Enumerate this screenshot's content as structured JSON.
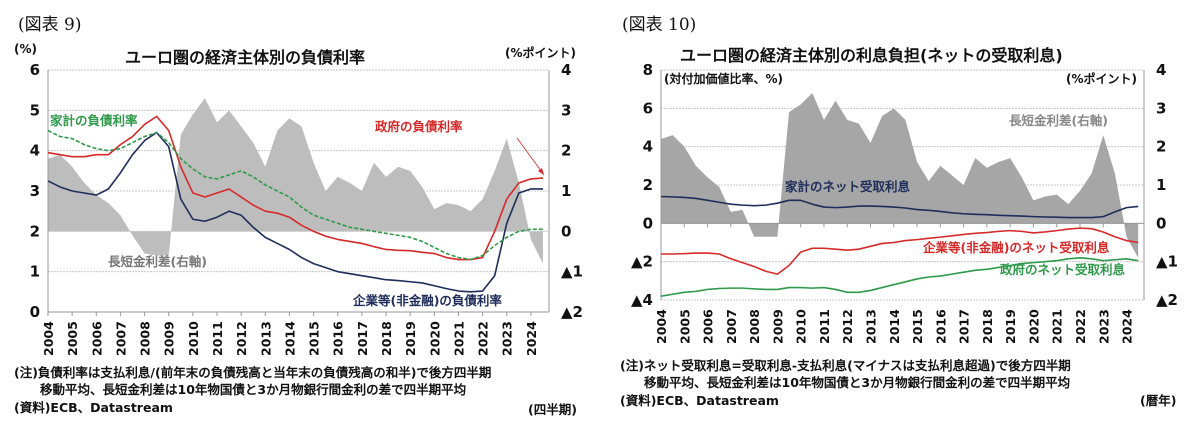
{
  "left": {
    "fig_label": "(図表 9)",
    "title": "ユーロ圏の経済主体別の負債利率",
    "left_unit": "(%)",
    "right_unit": "(%ポイント)",
    "note1": "(注)負債利率は支払利息/(前年末の負債残高と当年末の負債残高の和半)で後方四半期",
    "note2": "移動平均、長短金利差は10年物国債と3か月物銀行間金利の差で四半期平均",
    "source": "(資料)ECB、Datastream",
    "period": "(四半期)"
  },
  "right": {
    "fig_label": "(図表 10)",
    "title": "ユーロ圏の経済主体別の利息負担(ネットの受取利息)",
    "left_unit": "(対付加価値比率、%)",
    "right_unit": "(%ポイント)",
    "note1": "(注)ネット受取利息=受取利息-支払利息(マイナスは支払利息超過)で後方四半期",
    "note2": "移動平均、長短金利差は10年物国債と3か月物銀行間金利の差で四半期平均",
    "source": "(資料)ECB、Datastream",
    "period": "(暦年)"
  },
  "chart_data": [
    {
      "type": "line",
      "title": "ユーロ圏の経済主体別の負債利率",
      "xlabel": "(四半期)",
      "ylabel": "(%)",
      "y2label": "(%ポイント)",
      "categories": [
        "2004",
        "2005",
        "2006",
        "2007",
        "2008",
        "2009",
        "2010",
        "2011",
        "2012",
        "2013",
        "2014",
        "2015",
        "2016",
        "2017",
        "2018",
        "2019",
        "2020",
        "2021",
        "2022",
        "2023",
        "2024"
      ],
      "ylim": [
        0,
        6
      ],
      "y2lim": [
        -2,
        4
      ],
      "yticks": [
        "0",
        "1",
        "2",
        "3",
        "4",
        "5",
        "6"
      ],
      "y2ticks": [
        "▲2",
        "▲1",
        "0",
        "1",
        "2",
        "3",
        "4"
      ],
      "x": [
        2004.0,
        2004.5,
        2005.0,
        2005.5,
        2006.0,
        2006.5,
        2007.0,
        2007.5,
        2008.0,
        2008.5,
        2009.0,
        2009.5,
        2010.0,
        2010.5,
        2011.0,
        2011.5,
        2012.0,
        2012.5,
        2013.0,
        2013.5,
        2014.0,
        2014.5,
        2015.0,
        2015.5,
        2016.0,
        2016.5,
        2017.0,
        2017.5,
        2018.0,
        2018.5,
        2019.0,
        2019.5,
        2020.0,
        2020.5,
        2021.0,
        2021.5,
        2022.0,
        2022.5,
        2023.0,
        2023.5,
        2024.0,
        2024.5
      ],
      "series": [
        {
          "name": "企業等(非金融)の負債利率",
          "axis": "left",
          "color": "#d62a2a",
          "style": "solid",
          "values": [
            3.95,
            3.9,
            3.85,
            3.85,
            3.9,
            3.9,
            4.15,
            4.35,
            4.65,
            4.85,
            4.5,
            3.6,
            2.95,
            2.85,
            2.95,
            3.05,
            2.85,
            2.65,
            2.5,
            2.45,
            2.35,
            2.15,
            2.0,
            1.88,
            1.8,
            1.75,
            1.7,
            1.62,
            1.55,
            1.53,
            1.52,
            1.48,
            1.45,
            1.35,
            1.3,
            1.3,
            1.35,
            2.0,
            2.8,
            3.2,
            3.3,
            3.32
          ]
        },
        {
          "name": "家計の負債利率",
          "axis": "left",
          "color": "#1f2d5a",
          "style": "solid",
          "values": [
            3.25,
            3.1,
            3.0,
            2.95,
            2.9,
            3.05,
            3.45,
            3.9,
            4.25,
            4.45,
            4.1,
            2.8,
            2.3,
            2.25,
            2.35,
            2.5,
            2.4,
            2.1,
            1.85,
            1.7,
            1.55,
            1.35,
            1.2,
            1.1,
            1.0,
            0.95,
            0.9,
            0.85,
            0.8,
            0.78,
            0.75,
            0.72,
            0.65,
            0.58,
            0.52,
            0.5,
            0.52,
            0.9,
            2.2,
            2.95,
            3.05,
            3.05
          ]
        },
        {
          "name": "政府の負債利率",
          "axis": "left",
          "color": "#2e9a4a",
          "style": "dashed",
          "values": [
            4.5,
            4.35,
            4.3,
            4.15,
            4.05,
            4.0,
            4.05,
            4.2,
            4.35,
            4.45,
            4.2,
            3.8,
            3.55,
            3.35,
            3.3,
            3.4,
            3.5,
            3.35,
            3.15,
            3.0,
            2.85,
            2.6,
            2.4,
            2.3,
            2.2,
            2.1,
            2.05,
            2.0,
            1.95,
            1.9,
            1.85,
            1.75,
            1.6,
            1.45,
            1.35,
            1.3,
            1.4,
            1.65,
            1.85,
            2.0,
            2.05,
            2.05
          ]
        },
        {
          "name": "長短金利差(右軸)",
          "axis": "right",
          "color": "#bdbdbd",
          "style": "area",
          "values": [
            1.8,
            1.9,
            1.6,
            1.2,
            0.9,
            0.7,
            0.4,
            -0.1,
            -0.55,
            -0.6,
            -0.6,
            2.4,
            2.9,
            3.3,
            2.7,
            3.0,
            2.6,
            2.2,
            1.6,
            2.5,
            2.8,
            2.6,
            1.7,
            1.0,
            1.35,
            1.2,
            1.0,
            1.7,
            1.35,
            1.6,
            1.5,
            1.1,
            0.55,
            0.7,
            0.65,
            0.5,
            0.8,
            1.5,
            2.3,
            1.2,
            -0.2,
            -0.8
          ]
        }
      ],
      "annotations": [
        "政府の負債利率",
        "企業等(非金融)の負債利率",
        "家計の負債利率",
        "長短金利差(右軸)"
      ]
    },
    {
      "type": "line",
      "title": "ユーロ圏の経済主体別の利息負担(ネットの受取利息)",
      "xlabel": "(暦年)",
      "ylabel": "(対付加価値比率、%)",
      "y2label": "(%ポイント)",
      "categories": [
        "2004",
        "2005",
        "2006",
        "2007",
        "2008",
        "2009",
        "2010",
        "2011",
        "2012",
        "2013",
        "2014",
        "2015",
        "2016",
        "2017",
        "2018",
        "2019",
        "2020",
        "2021",
        "2022",
        "2023",
        "2024"
      ],
      "ylim": [
        -4,
        8
      ],
      "y2lim": [
        -2,
        4
      ],
      "yticks": [
        "▲4",
        "▲2",
        "0",
        "2",
        "4",
        "6",
        "8"
      ],
      "y2ticks": [
        "▲2",
        "▲1",
        "0",
        "1",
        "2",
        "3",
        "4"
      ],
      "x": [
        2004.0,
        2004.5,
        2005.0,
        2005.5,
        2006.0,
        2006.5,
        2007.0,
        2007.5,
        2008.0,
        2008.5,
        2009.0,
        2009.5,
        2010.0,
        2010.5,
        2011.0,
        2011.5,
        2012.0,
        2012.5,
        2013.0,
        2013.5,
        2014.0,
        2014.5,
        2015.0,
        2015.5,
        2016.0,
        2016.5,
        2017.0,
        2017.5,
        2018.0,
        2018.5,
        2019.0,
        2019.5,
        2020.0,
        2020.5,
        2021.0,
        2021.5,
        2022.0,
        2022.5,
        2023.0,
        2023.5,
        2024.0,
        2024.5
      ],
      "series": [
        {
          "name": "家計のネット受取利息",
          "axis": "left",
          "color": "#1f2d5a",
          "style": "solid",
          "values": [
            1.4,
            1.38,
            1.35,
            1.3,
            1.2,
            1.1,
            1.0,
            0.95,
            0.92,
            0.95,
            1.05,
            1.2,
            1.2,
            1.0,
            0.85,
            0.82,
            0.85,
            0.9,
            0.9,
            0.88,
            0.85,
            0.8,
            0.72,
            0.68,
            0.62,
            0.55,
            0.5,
            0.47,
            0.45,
            0.42,
            0.4,
            0.38,
            0.35,
            0.33,
            0.32,
            0.3,
            0.3,
            0.3,
            0.35,
            0.6,
            0.82,
            0.88
          ]
        },
        {
          "name": "企業等(非金融)のネット受取利息",
          "axis": "left",
          "color": "#d62a2a",
          "style": "solid",
          "values": [
            -1.6,
            -1.6,
            -1.58,
            -1.55,
            -1.55,
            -1.6,
            -1.85,
            -2.05,
            -2.25,
            -2.5,
            -2.65,
            -2.2,
            -1.5,
            -1.3,
            -1.3,
            -1.35,
            -1.4,
            -1.35,
            -1.2,
            -1.05,
            -1.0,
            -0.9,
            -0.85,
            -0.78,
            -0.72,
            -0.65,
            -0.58,
            -0.52,
            -0.48,
            -0.42,
            -0.38,
            -0.42,
            -0.5,
            -0.45,
            -0.38,
            -0.3,
            -0.25,
            -0.28,
            -0.45,
            -0.7,
            -0.9,
            -1.0
          ]
        },
        {
          "name": "政府のネット受取利息",
          "axis": "left",
          "color": "#2e9a4a",
          "style": "solid",
          "values": [
            -3.8,
            -3.7,
            -3.6,
            -3.55,
            -3.45,
            -3.4,
            -3.38,
            -3.38,
            -3.42,
            -3.45,
            -3.45,
            -3.35,
            -3.35,
            -3.38,
            -3.35,
            -3.45,
            -3.6,
            -3.6,
            -3.5,
            -3.35,
            -3.2,
            -3.05,
            -2.9,
            -2.8,
            -2.75,
            -2.65,
            -2.55,
            -2.45,
            -2.4,
            -2.3,
            -2.2,
            -2.1,
            -2.05,
            -2.0,
            -1.95,
            -1.85,
            -1.8,
            -1.85,
            -1.95,
            -1.9,
            -1.85,
            -1.95
          ]
        },
        {
          "name": "長短金利差(右軸)",
          "axis": "right",
          "color": "#a6a6a6",
          "style": "area",
          "values": [
            2.2,
            2.3,
            2.0,
            1.5,
            1.2,
            0.95,
            0.3,
            0.35,
            -0.35,
            -0.35,
            -0.35,
            2.9,
            3.1,
            3.4,
            2.7,
            3.2,
            2.7,
            2.6,
            2.1,
            2.8,
            3.0,
            2.7,
            1.6,
            1.1,
            1.5,
            1.25,
            1.0,
            1.7,
            1.45,
            1.6,
            1.7,
            1.2,
            0.6,
            0.7,
            0.75,
            0.5,
            0.85,
            1.3,
            2.3,
            1.3,
            -0.35,
            -0.9
          ]
        }
      ],
      "annotations": [
        "家計のネット受取利息",
        "企業等(非金融)のネット受取利息",
        "政府のネット受取利息",
        "長短金利差(右軸)"
      ]
    }
  ]
}
